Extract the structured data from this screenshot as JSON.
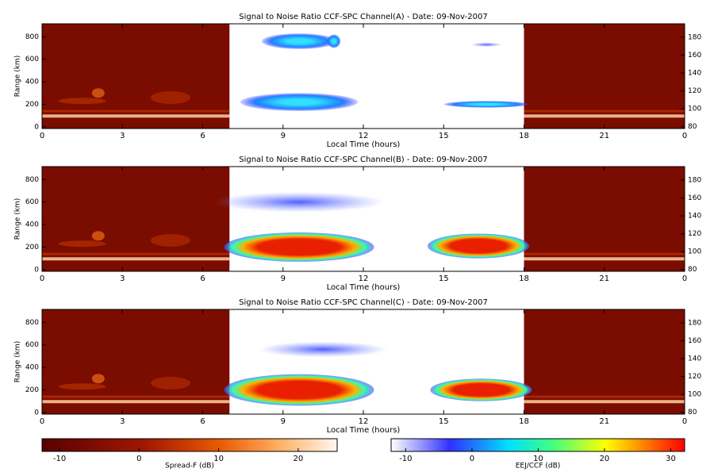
{
  "chart_data": [
    {
      "type": "heatmap",
      "title": "Signal to Noise Ratio CCF-SPC Channel(A) - Date: 09-Nov-2007",
      "xlabel": "Local Time (hours)",
      "ylabel": "Range (km)",
      "xlim": [
        0,
        24
      ],
      "xticks": [
        0,
        3,
        6,
        9,
        12,
        15,
        18,
        21,
        {
          "value": 24,
          "label": "0"
        }
      ],
      "ylim": [
        -15,
        915
      ],
      "yticks": [
        0,
        200,
        400,
        600,
        800
      ],
      "y2lim": [
        78,
        195
      ],
      "y2ticks": [
        80,
        100,
        120,
        140,
        160,
        180
      ]
    },
    {
      "type": "heatmap",
      "title": "Signal to Noise Ratio CCF-SPC Channel(B) - Date: 09-Nov-2007",
      "xlabel": "Local Time (hours)",
      "ylabel": "Range (km)",
      "xlim": [
        0,
        24
      ],
      "xticks": [
        0,
        3,
        6,
        9,
        12,
        15,
        18,
        21,
        {
          "value": 24,
          "label": "0"
        }
      ],
      "ylim": [
        -15,
        915
      ],
      "yticks": [
        0,
        200,
        400,
        600,
        800
      ],
      "y2lim": [
        78,
        195
      ],
      "y2ticks": [
        80,
        100,
        120,
        140,
        160,
        180
      ]
    },
    {
      "type": "heatmap",
      "title": "Signal to Noise Ratio CCF-SPC Channel(C) - Date: 09-Nov-2007",
      "xlabel": "Local Time (hours)",
      "ylabel": "Range (km)",
      "xlim": [
        0,
        24
      ],
      "xticks": [
        0,
        3,
        6,
        9,
        12,
        15,
        18,
        21,
        {
          "value": 24,
          "label": "0"
        }
      ],
      "ylim": [
        -15,
        915
      ],
      "yticks": [
        0,
        200,
        400,
        600,
        800
      ],
      "y2lim": [
        78,
        195
      ],
      "y2ticks": [
        80,
        100,
        120,
        140,
        160,
        180
      ]
    }
  ],
  "colorbars": [
    {
      "label": "Spread-F (dB)",
      "lim": [
        -12.2,
        24.9
      ],
      "ticks": [
        -10,
        0,
        10,
        20
      ]
    },
    {
      "label": "EEJ/CCF (dB)",
      "lim": [
        -12.2,
        32.1
      ],
      "ticks": [
        -10,
        0,
        10,
        20,
        30
      ]
    }
  ]
}
